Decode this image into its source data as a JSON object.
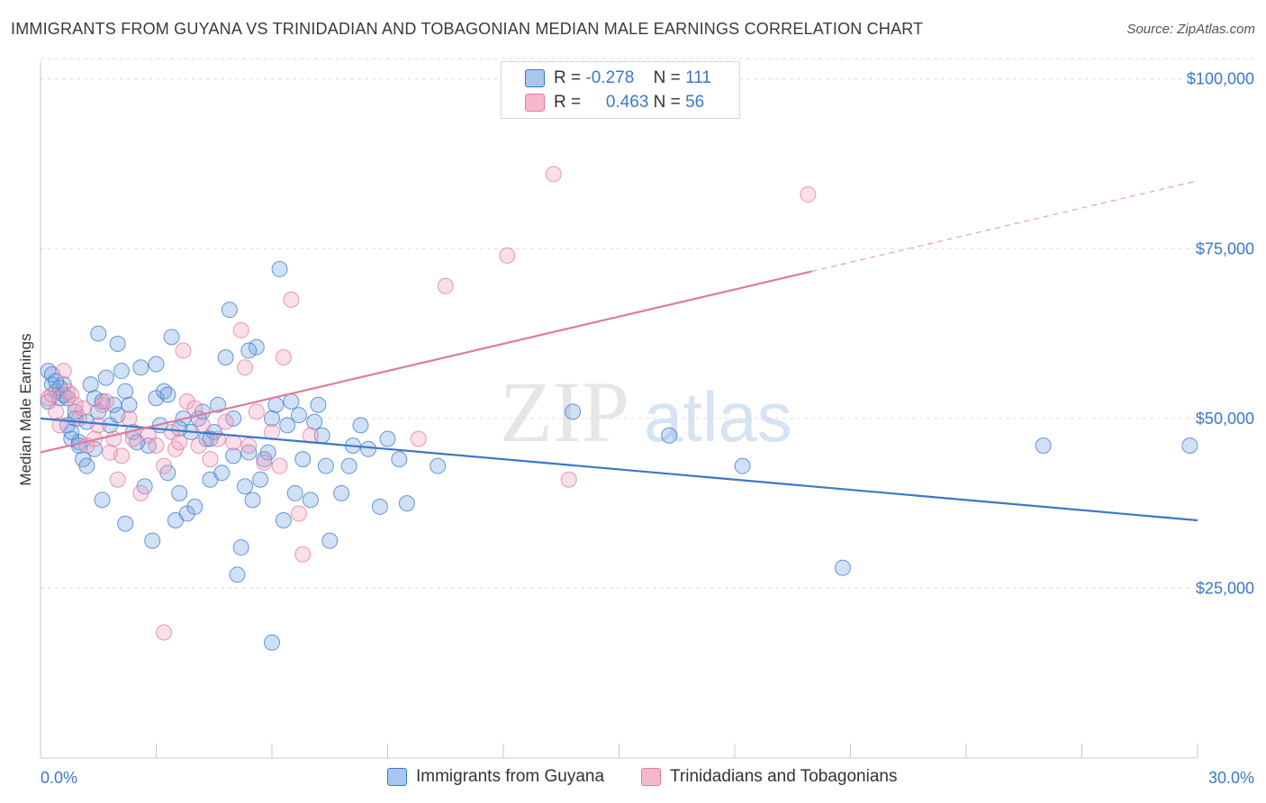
{
  "header": {
    "title": "IMMIGRANTS FROM GUYANA VS TRINIDADIAN AND TOBAGONIAN MEDIAN MALE EARNINGS CORRELATION CHART",
    "source": "Source: ZipAtlas.com"
  },
  "legend": {
    "r_label": "R =",
    "n_label": "N =",
    "series": [
      {
        "r": "-0.278",
        "n": "111"
      },
      {
        "r": "0.463",
        "n": "56"
      }
    ]
  },
  "watermark": {
    "zip": "ZIP",
    "atlas": "atlas"
  },
  "chart_data": {
    "type": "scatter",
    "ylabel": "Median Male Earnings",
    "xlabel": "",
    "xlim": [
      0,
      30
    ],
    "ylim": [
      0,
      105000
    ],
    "x_tick_labels": [
      "0.0%",
      "30.0%"
    ],
    "y_ticks": [
      25000,
      50000,
      75000,
      100000
    ],
    "y_tick_labels": [
      "$25,000",
      "$50,000",
      "$75,000",
      "$100,000"
    ],
    "grid": true,
    "legend_position": "top-center",
    "colors": {
      "blue": "#3b78c8",
      "pink": "#e07aa0",
      "blue_fill": "#a9c6ee",
      "pink_fill": "#f5b8cb"
    },
    "series": [
      {
        "name": "Immigrants from Guyana",
        "color": "#3b78c8",
        "trend": {
          "x0": 0,
          "y0": 50000,
          "x1": 30,
          "y1": 35000
        },
        "points": [
          [
            0.2,
            57000
          ],
          [
            0.3,
            55000
          ],
          [
            0.4,
            54000
          ],
          [
            0.5,
            53000
          ],
          [
            0.6,
            55000
          ],
          [
            0.7,
            49000
          ],
          [
            0.8,
            47000
          ],
          [
            0.9,
            50000
          ],
          [
            1.0,
            46000
          ],
          [
            1.1,
            44000
          ],
          [
            1.2,
            43000
          ],
          [
            1.3,
            55000
          ],
          [
            1.4,
            53000
          ],
          [
            1.5,
            51000
          ],
          [
            1.6,
            38000
          ],
          [
            1.7,
            56000
          ],
          [
            1.8,
            49000
          ],
          [
            1.9,
            52000
          ],
          [
            2.0,
            61000
          ],
          [
            2.1,
            57000
          ],
          [
            2.2,
            54000
          ],
          [
            2.3,
            52000
          ],
          [
            2.4,
            48000
          ],
          [
            2.6,
            57500
          ],
          [
            2.7,
            40000
          ],
          [
            2.8,
            46000
          ],
          [
            2.9,
            32000
          ],
          [
            3.0,
            53000
          ],
          [
            3.1,
            49000
          ],
          [
            3.2,
            54000
          ],
          [
            3.3,
            42000
          ],
          [
            3.4,
            62000
          ],
          [
            3.5,
            35000
          ],
          [
            3.6,
            39000
          ],
          [
            3.7,
            50000
          ],
          [
            3.8,
            36000
          ],
          [
            3.9,
            48000
          ],
          [
            4.0,
            37000
          ],
          [
            4.1,
            50000
          ],
          [
            4.2,
            51000
          ],
          [
            4.3,
            47000
          ],
          [
            4.4,
            41000
          ],
          [
            4.5,
            48000
          ],
          [
            4.7,
            42000
          ],
          [
            4.8,
            59000
          ],
          [
            4.9,
            66000
          ],
          [
            5.0,
            50000
          ],
          [
            5.1,
            27000
          ],
          [
            5.2,
            31000
          ],
          [
            5.3,
            40000
          ],
          [
            5.4,
            45000
          ],
          [
            5.5,
            38000
          ],
          [
            5.6,
            60500
          ],
          [
            5.7,
            41000
          ],
          [
            5.8,
            44000
          ],
          [
            5.9,
            45000
          ],
          [
            6.0,
            50000
          ],
          [
            6.1,
            52000
          ],
          [
            6.3,
            35000
          ],
          [
            6.4,
            49000
          ],
          [
            6.6,
            39000
          ],
          [
            6.7,
            50500
          ],
          [
            6.8,
            44000
          ],
          [
            7.0,
            38000
          ],
          [
            7.2,
            52000
          ],
          [
            7.3,
            47500
          ],
          [
            7.4,
            43000
          ],
          [
            7.5,
            32000
          ],
          [
            7.8,
            39000
          ],
          [
            8.0,
            43000
          ],
          [
            8.3,
            49000
          ],
          [
            8.5,
            45500
          ],
          [
            8.8,
            37000
          ],
          [
            9.0,
            47000
          ],
          [
            9.3,
            44000
          ],
          [
            9.5,
            37500
          ],
          [
            10.3,
            43000
          ],
          [
            0.3,
            56500
          ],
          [
            0.6,
            53500
          ],
          [
            1.5,
            62500
          ],
          [
            6.0,
            17000
          ],
          [
            6.2,
            72000
          ],
          [
            13.8,
            51000
          ],
          [
            16.3,
            47500
          ],
          [
            18.2,
            43000
          ],
          [
            20.8,
            28000
          ],
          [
            26.0,
            46000
          ],
          [
            29.8,
            46000
          ],
          [
            0.5,
            54500
          ],
          [
            0.9,
            51000
          ],
          [
            1.2,
            49500
          ],
          [
            0.4,
            55500
          ],
          [
            2.5,
            46500
          ],
          [
            3.0,
            58000
          ],
          [
            4.6,
            52000
          ],
          [
            5.4,
            60000
          ],
          [
            1.6,
            52500
          ],
          [
            2.2,
            34500
          ],
          [
            0.8,
            48000
          ],
          [
            1.0,
            46500
          ],
          [
            0.7,
            53000
          ],
          [
            1.4,
            45500
          ],
          [
            2.0,
            50500
          ],
          [
            3.6,
            48500
          ],
          [
            4.4,
            47000
          ],
          [
            5.0,
            44500
          ],
          [
            7.1,
            49500
          ],
          [
            6.5,
            52500
          ],
          [
            8.1,
            46000
          ],
          [
            3.3,
            53500
          ],
          [
            0.2,
            52500
          ]
        ]
      },
      {
        "name": "Trinidadians and Tobagonians",
        "color": "#e07aa0",
        "trend": {
          "x0": 0,
          "y0": 45000,
          "x1": 30,
          "y1": 85000
        },
        "points": [
          [
            0.2,
            53000
          ],
          [
            0.4,
            51000
          ],
          [
            0.5,
            49000
          ],
          [
            0.6,
            57000
          ],
          [
            0.7,
            54000
          ],
          [
            0.8,
            53500
          ],
          [
            0.9,
            52000
          ],
          [
            1.0,
            50000
          ],
          [
            1.2,
            46000
          ],
          [
            1.4,
            47000
          ],
          [
            1.5,
            49000
          ],
          [
            1.6,
            52000
          ],
          [
            1.8,
            45000
          ],
          [
            1.9,
            47000
          ],
          [
            2.0,
            41000
          ],
          [
            2.3,
            50000
          ],
          [
            2.4,
            47000
          ],
          [
            2.6,
            39000
          ],
          [
            2.8,
            47500
          ],
          [
            3.0,
            46000
          ],
          [
            3.2,
            43000
          ],
          [
            3.4,
            48000
          ],
          [
            3.5,
            45500
          ],
          [
            3.7,
            60000
          ],
          [
            3.8,
            52500
          ],
          [
            4.0,
            51500
          ],
          [
            4.2,
            49000
          ],
          [
            4.4,
            44000
          ],
          [
            4.6,
            47000
          ],
          [
            4.8,
            49500
          ],
          [
            5.0,
            46500
          ],
          [
            5.2,
            63000
          ],
          [
            5.4,
            46000
          ],
          [
            5.6,
            51000
          ],
          [
            5.8,
            43500
          ],
          [
            6.0,
            48000
          ],
          [
            6.2,
            43000
          ],
          [
            6.5,
            67500
          ],
          [
            6.7,
            36000
          ],
          [
            6.8,
            30000
          ],
          [
            7.0,
            47500
          ],
          [
            3.2,
            18500
          ],
          [
            9.8,
            47000
          ],
          [
            10.5,
            69500
          ],
          [
            12.1,
            74000
          ],
          [
            13.3,
            86000
          ],
          [
            13.7,
            41000
          ],
          [
            19.9,
            83000
          ],
          [
            0.3,
            53500
          ],
          [
            1.1,
            51500
          ],
          [
            2.1,
            44500
          ],
          [
            3.6,
            46500
          ],
          [
            5.3,
            57500
          ],
          [
            6.3,
            59000
          ],
          [
            4.1,
            46000
          ],
          [
            1.7,
            52500
          ]
        ]
      }
    ]
  },
  "bottom_legend": [
    "Immigrants from Guyana",
    "Trinidadians and Tobagonians"
  ]
}
